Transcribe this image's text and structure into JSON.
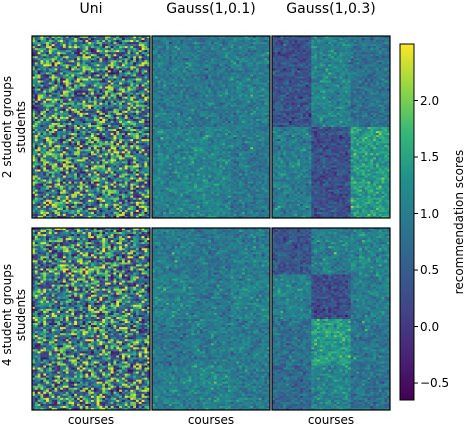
{
  "chart_data": {
    "type": "heatmap",
    "columns": [
      "Uni",
      "Gauss(1,0.1)",
      "Gauss(1,0.3)"
    ],
    "rows": [
      {
        "label_line1": "2 student groups",
        "label_line2": "students"
      },
      {
        "label_line1": "4 student groups",
        "label_line2": "students"
      }
    ],
    "xlabel": "courses",
    "colorbar": {
      "label": "recommendation scores",
      "min": -0.65,
      "max": 2.5,
      "ticks": [
        -0.5,
        0.0,
        0.5,
        1.0,
        1.5,
        2.0
      ],
      "tick_labels": [
        "−0.5",
        "0.0",
        "0.5",
        "1.0",
        "1.5",
        "2.0"
      ],
      "colormap": "viridis"
    },
    "panels": [
      {
        "row": 0,
        "col": 0,
        "dist": "uniform",
        "low": -0.5,
        "high": 2.5,
        "student_groups": 2
      },
      {
        "row": 0,
        "col": 1,
        "dist": "gauss",
        "mean": 1,
        "sd": 0.1,
        "student_groups": 2,
        "course_groups": 3
      },
      {
        "row": 0,
        "col": 2,
        "dist": "gauss",
        "mean": 1,
        "sd": 0.3,
        "student_groups": 2,
        "course_groups": 3
      },
      {
        "row": 1,
        "col": 0,
        "dist": "uniform",
        "low": -0.5,
        "high": 2.5,
        "student_groups": 4
      },
      {
        "row": 1,
        "col": 1,
        "dist": "gauss",
        "mean": 1,
        "sd": 0.1,
        "student_groups": 4,
        "course_groups": 3
      },
      {
        "row": 1,
        "col": 2,
        "dist": "gauss",
        "mean": 1,
        "sd": 0.3,
        "student_groups": 4,
        "course_groups": 3
      }
    ]
  }
}
